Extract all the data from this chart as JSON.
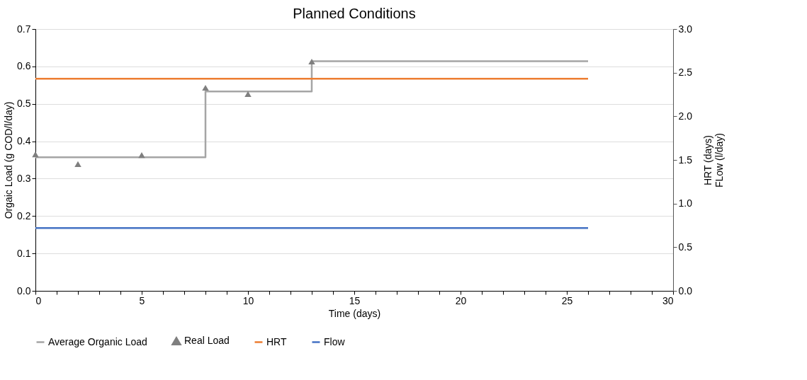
{
  "chart_data": {
    "type": "line",
    "title": "Planned Conditions",
    "xlabel": "Time (days)",
    "ylabel": "Orgaic Load (g COD/l/day)",
    "y2label": [
      "HRT (days)",
      "FLow (l/day)"
    ],
    "xlim": [
      0,
      30
    ],
    "xticks": [
      0,
      {
        "value": 1,
        "label": null
      },
      {
        "value": 2,
        "label": null
      },
      {
        "value": 3,
        "label": null
      },
      {
        "value": 4,
        "label": null
      },
      5,
      {
        "value": 6,
        "label": null
      },
      {
        "value": 7,
        "label": null
      },
      {
        "value": 8,
        "label": null
      },
      {
        "value": 9,
        "label": null
      },
      10,
      {
        "value": 11,
        "label": null
      },
      {
        "value": 12,
        "label": null
      },
      {
        "value": 13,
        "label": null
      },
      {
        "value": 14,
        "label": null
      },
      15,
      {
        "value": 16,
        "label": null
      },
      {
        "value": 17,
        "label": null
      },
      {
        "value": 18,
        "label": null
      },
      {
        "value": 19,
        "label": null
      },
      20,
      {
        "value": 21,
        "label": null
      },
      {
        "value": 22,
        "label": null
      },
      {
        "value": 23,
        "label": null
      },
      {
        "value": 24,
        "label": null
      },
      25,
      {
        "value": 26,
        "label": null
      },
      {
        "value": 27,
        "label": null
      },
      {
        "value": 28,
        "label": null
      },
      {
        "value": 29,
        "label": null
      },
      30
    ],
    "ylim": [
      0,
      0.7
    ],
    "yticks": [
      {
        "value": 0,
        "label": "0.0"
      },
      0.1,
      0.2,
      0.3,
      0.4,
      0.5,
      0.6,
      0.7
    ],
    "y2lim": [
      0,
      3
    ],
    "y2ticks": [
      {
        "value": 0,
        "label": "0.0"
      },
      0.5,
      {
        "value": 1,
        "label": "1.0"
      },
      1.5,
      {
        "value": 2,
        "label": "2.0"
      },
      2.5,
      {
        "value": 3,
        "label": "3.0"
      }
    ],
    "grid": "y",
    "legend": "bottom",
    "series": [
      {
        "name": "Average Organic Load",
        "type": "step",
        "color": "#a5a5a5",
        "x": [
          0,
          8,
          13,
          26
        ],
        "values": [
          0.357,
          0.533,
          0.614,
          0.614
        ]
      },
      {
        "name": "Real Load",
        "type": "scatter",
        "marker": "triangle",
        "color": "#7f7f7f",
        "x": [
          0,
          2,
          5,
          8,
          10,
          13
        ],
        "values": [
          0.365,
          0.339,
          0.363,
          0.543,
          0.526,
          0.613
        ]
      },
      {
        "name": "HRT",
        "axis": "y2",
        "color": "#ed7d31",
        "x": [
          0,
          26
        ],
        "values": [
          2.43,
          2.43
        ]
      },
      {
        "name": "Flow",
        "axis": "y2",
        "color": "#4472c4",
        "x": [
          0,
          26
        ],
        "values": [
          0.72,
          0.72
        ]
      }
    ]
  }
}
